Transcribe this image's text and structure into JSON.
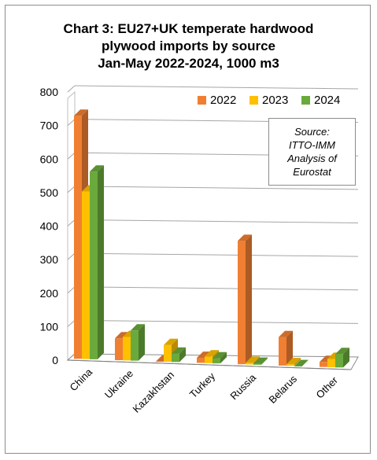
{
  "chart_data": {
    "type": "bar",
    "title_lines": [
      "Chart 3: EU27+UK temperate hardwood",
      "plywood imports by source",
      "Jan-May 2022-2024, 1000 m3"
    ],
    "categories": [
      "China",
      "Ukraine",
      "Kazakhstan",
      "Turkey",
      "Russia",
      "Belarus",
      "Other"
    ],
    "series": [
      {
        "name": "2022",
        "color": "#F07F32",
        "values": [
          725,
          65,
          0,
          15,
          368,
          85,
          15
        ]
      },
      {
        "name": "2023",
        "color": "#FFC000",
        "values": [
          500,
          70,
          50,
          20,
          5,
          5,
          25
        ]
      },
      {
        "name": "2024",
        "color": "#6AAA3C",
        "values": [
          560,
          90,
          25,
          15,
          3,
          0,
          40
        ]
      }
    ],
    "yticks": [
      "0",
      "100",
      "200",
      "300",
      "400",
      "500",
      "600",
      "700",
      "800"
    ],
    "ylim": [
      0,
      800
    ],
    "grid": true,
    "legend_position": "top-right",
    "source_lines": [
      "Source:",
      "ITTO-IMM",
      "Analysis of",
      "Eurostat"
    ]
  }
}
